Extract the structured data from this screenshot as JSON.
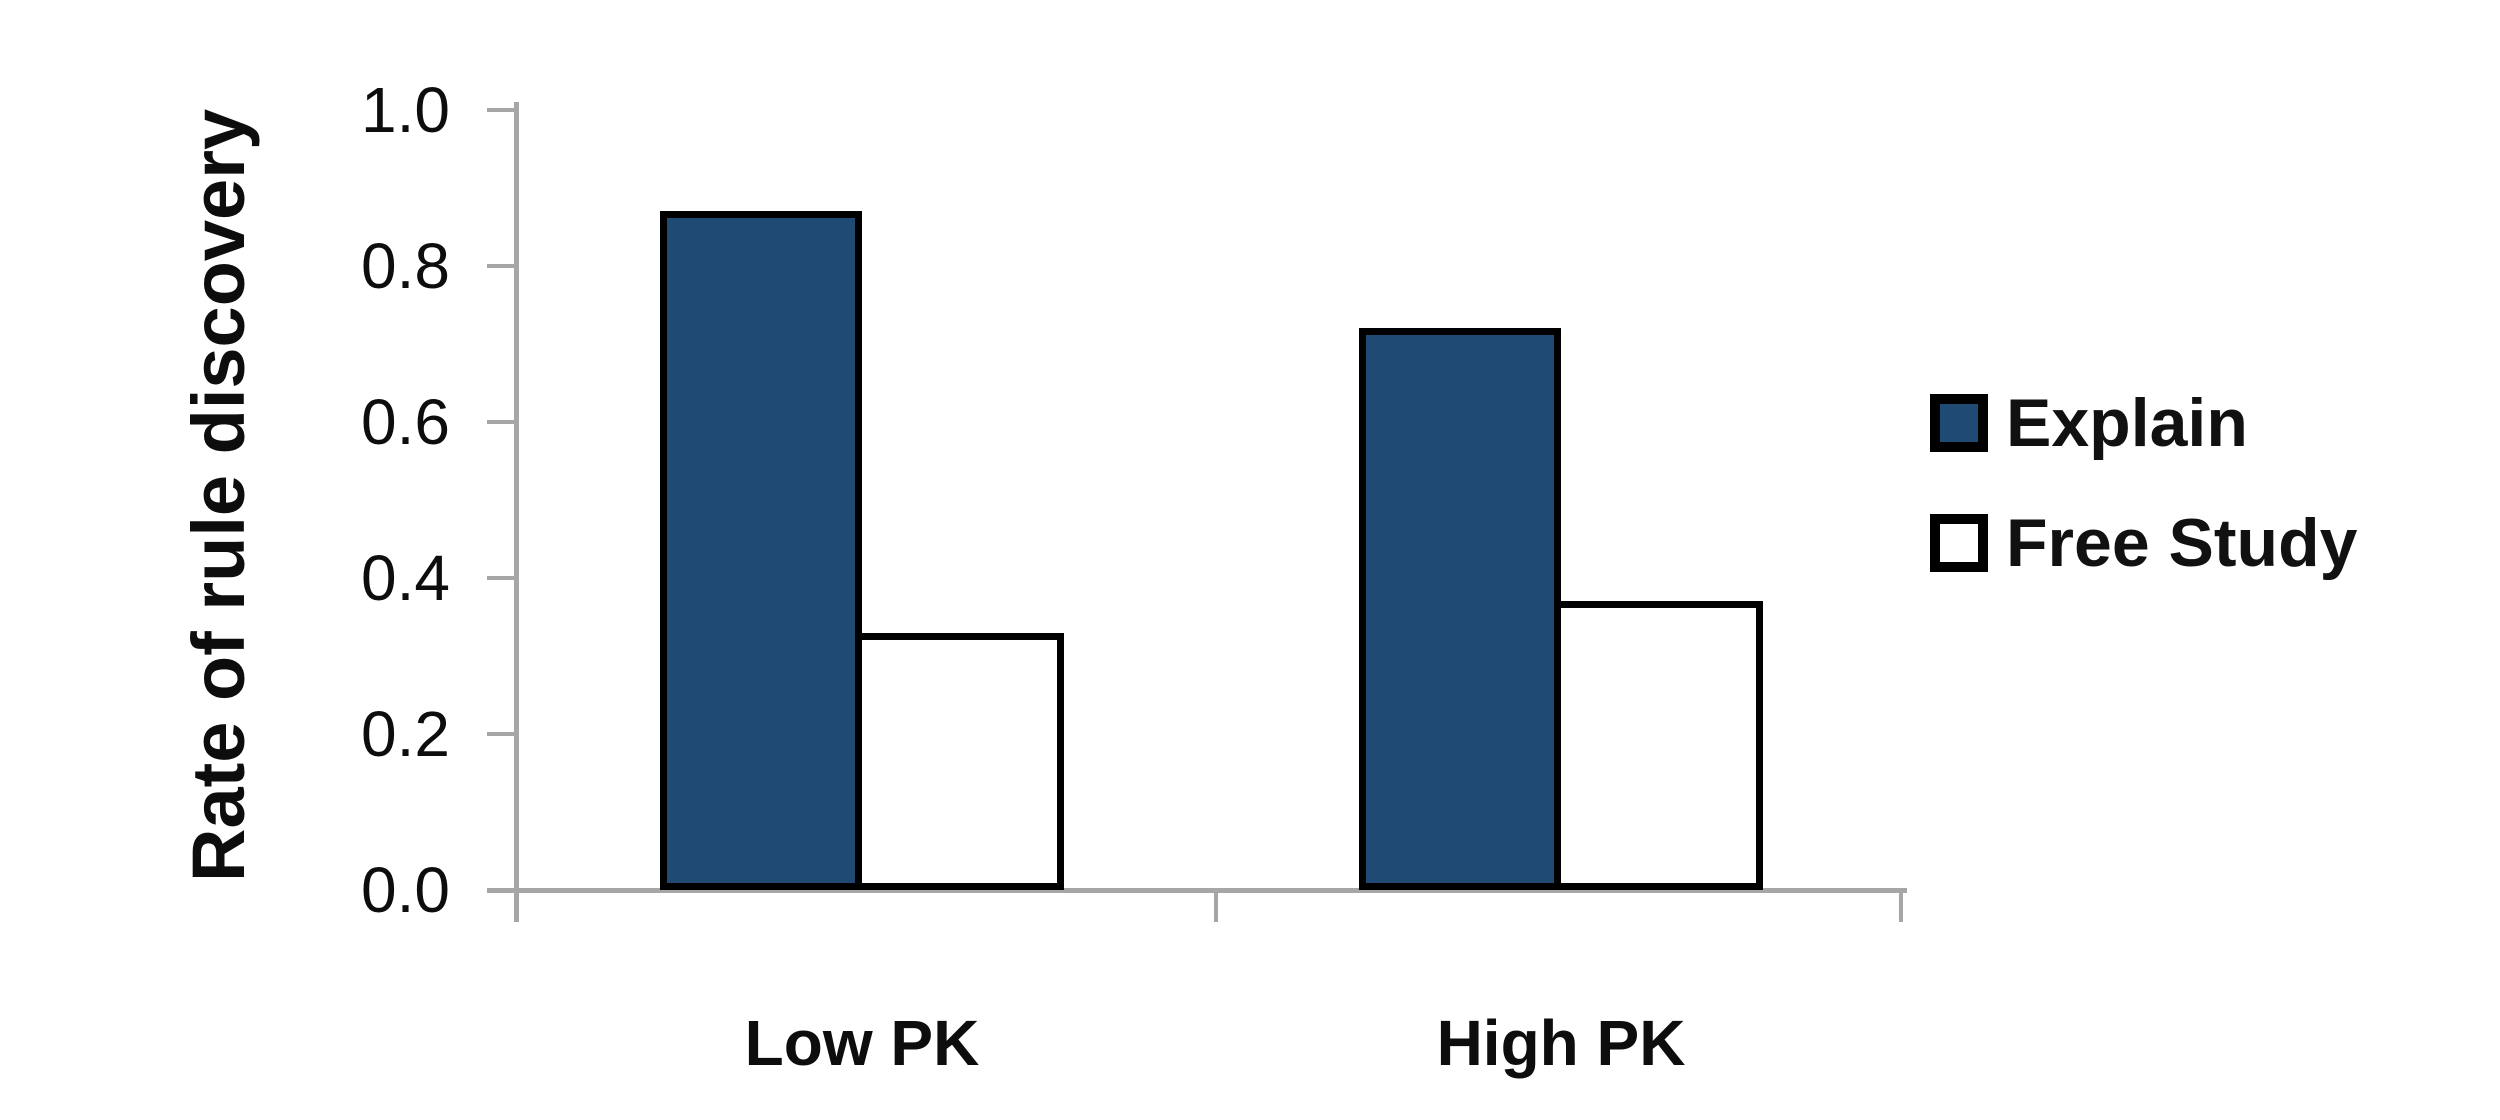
{
  "chart_data": {
    "type": "bar",
    "title": "",
    "ylabel": "Rate of rule discovery",
    "xlabel": "",
    "categories": [
      "Low PK",
      "High PK"
    ],
    "series": [
      {
        "name": "Explain",
        "values": [
          0.87,
          0.72
        ],
        "fill": "#1E4A73"
      },
      {
        "name": "Free Study",
        "values": [
          0.33,
          0.37
        ],
        "fill": "#FFFFFF"
      }
    ],
    "ylim": [
      0.0,
      1.0
    ],
    "yticks": [
      {
        "value": 0.0,
        "label": "0.0"
      },
      {
        "value": 0.2,
        "label": "0.2"
      },
      {
        "value": 0.4,
        "label": "0.4"
      },
      {
        "value": 0.6,
        "label": "0.6"
      },
      {
        "value": 0.8,
        "label": "0.8"
      },
      {
        "value": 1.0,
        "label": "1.0"
      }
    ],
    "grid": false,
    "legend_position": "right",
    "bar_border_color": "#000000",
    "axis_color": "#A6A6A6",
    "text_color": "#111111",
    "background_color": "#FFFFFF"
  }
}
